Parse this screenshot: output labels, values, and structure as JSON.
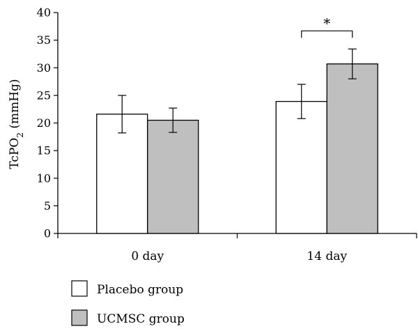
{
  "chart_data": {
    "type": "bar",
    "categories": [
      "0 day",
      "14 day"
    ],
    "series": [
      {
        "name": "Placebo group",
        "values": [
          21.6,
          23.9
        ],
        "errors": [
          3.4,
          3.1
        ],
        "color": "#ffffff"
      },
      {
        "name": "UCMSC group",
        "values": [
          20.5,
          30.7
        ],
        "errors": [
          2.2,
          2.7
        ],
        "color": "#bfbfbf"
      }
    ],
    "ylabel_main": "TcPO",
    "ylabel_sub": "2",
    "ylabel_unit": " (mmHg)",
    "ylim": [
      0,
      40
    ],
    "yticks": [
      0,
      5,
      10,
      15,
      20,
      25,
      30,
      35,
      40
    ],
    "grid": false,
    "legend_position": "bottom-left",
    "significance": {
      "category": "14 day",
      "mark": "*"
    }
  }
}
